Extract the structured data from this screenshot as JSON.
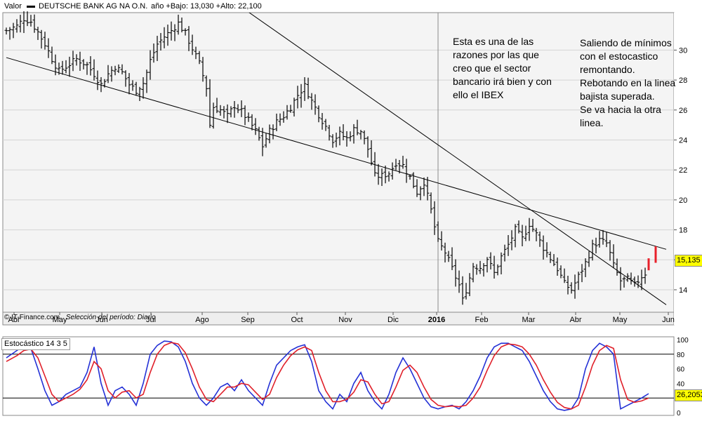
{
  "header": {
    "valor_label": "Valor",
    "instrument": "DEUTSCHE BANK AG NA O.N.",
    "range_text": "año +Bajo: 13,030 +Alto: 22,100"
  },
  "source": {
    "provider": "© IT-Finance.com",
    "period": "Selección del período: Diario"
  },
  "annotations": {
    "note1": "Esta es una de las\nrazones por las que\ncreo que el sector\nbancario irá bien y con\nello el IBEX",
    "note2": "Saliendo de mínimos\ncon el estocastico\nremontando.\nRebotando en la linea\nbajista superada.\nSe va hacia la otra\nlinea."
  },
  "colors": {
    "price_bar": "#000000",
    "recent_bar": "#e8202a",
    "stoch_k": "#2431d6",
    "stoch_d": "#e0202a",
    "badge": "#ffff00",
    "grid": "#d4d4d4"
  },
  "chart_data": [
    {
      "type": "ohlc",
      "chart": "price",
      "ylim": [
        12.5,
        32.5
      ],
      "y_ticks": [
        14,
        16,
        18,
        20,
        22,
        24,
        26,
        28,
        30
      ],
      "x_months": [
        "Abr",
        "May",
        "Jun",
        "Jul",
        "Ago",
        "Sep",
        "Oct",
        "Nov",
        "Dic",
        "2016",
        "Feb",
        "Mar",
        "Abr",
        "May",
        "Jun"
      ],
      "last_value": "15,135",
      "anchors": [
        [
          0,
          31.3
        ],
        [
          3,
          31.6
        ],
        [
          5,
          32.1
        ],
        [
          7,
          31.9
        ],
        [
          9,
          31.2
        ],
        [
          11,
          30.4
        ],
        [
          13,
          29.4
        ],
        [
          15,
          28.6
        ],
        [
          17,
          28.9
        ],
        [
          20,
          29.4
        ],
        [
          23,
          29.0
        ],
        [
          25,
          28.4
        ],
        [
          27,
          27.7
        ],
        [
          29,
          28.4
        ],
        [
          31,
          28.9
        ],
        [
          33,
          28.5
        ],
        [
          35,
          27.7
        ],
        [
          37,
          27.3
        ],
        [
          39,
          27.8
        ],
        [
          40,
          28.5
        ],
        [
          41,
          29.3
        ],
        [
          43,
          30.4
        ],
        [
          45,
          30.9
        ],
        [
          47,
          31.3
        ],
        [
          49,
          31.8
        ],
        [
          51,
          31.1
        ],
        [
          53,
          30.1
        ],
        [
          55,
          29.1
        ],
        [
          57,
          27.5
        ],
        [
          58,
          25.0
        ],
        [
          59,
          26.2
        ],
        [
          61,
          26.0
        ],
        [
          63,
          25.6
        ],
        [
          65,
          26.3
        ],
        [
          67,
          25.9
        ],
        [
          69,
          25.3
        ],
        [
          71,
          24.6
        ],
        [
          73,
          23.6
        ],
        [
          75,
          24.6
        ],
        [
          77,
          25.2
        ],
        [
          79,
          25.6
        ],
        [
          81,
          26.2
        ],
        [
          83,
          27.0
        ],
        [
          85,
          27.6
        ],
        [
          87,
          26.6
        ],
        [
          89,
          25.7
        ],
        [
          91,
          24.9
        ],
        [
          93,
          24.0
        ],
        [
          95,
          24.4
        ],
        [
          97,
          24.1
        ],
        [
          99,
          24.7
        ],
        [
          101,
          24.6
        ],
        [
          103,
          23.4
        ],
        [
          105,
          21.6
        ],
        [
          107,
          21.6
        ],
        [
          109,
          21.8
        ],
        [
          111,
          22.5
        ],
        [
          113,
          22.3
        ],
        [
          115,
          21.5
        ],
        [
          117,
          20.5
        ],
        [
          119,
          21.2
        ],
        [
          121,
          19.3
        ],
        [
          122,
          18.2
        ],
        [
          123,
          17.2
        ],
        [
          125,
          16.5
        ],
        [
          127,
          15.4
        ],
        [
          129,
          14.3
        ],
        [
          130,
          13.3
        ],
        [
          131,
          14.0
        ],
        [
          133,
          15.6
        ],
        [
          135,
          15.5
        ],
        [
          137,
          16.1
        ],
        [
          139,
          15.1
        ],
        [
          141,
          16.2
        ],
        [
          143,
          17.0
        ],
        [
          145,
          18.0
        ],
        [
          147,
          17.4
        ],
        [
          149,
          18.4
        ],
        [
          151,
          17.7
        ],
        [
          153,
          16.8
        ],
        [
          155,
          16.1
        ],
        [
          157,
          15.4
        ],
        [
          159,
          14.4
        ],
        [
          161,
          14.0
        ],
        [
          163,
          14.9
        ],
        [
          165,
          15.8
        ],
        [
          167,
          16.9
        ],
        [
          169,
          17.3
        ],
        [
          171,
          17.1
        ],
        [
          172,
          16.4
        ],
        [
          173,
          15.6
        ],
        [
          175,
          14.6
        ],
        [
          177,
          14.7
        ],
        [
          179,
          14.3
        ],
        [
          181,
          14.9
        ],
        [
          182,
          15.1
        ]
      ],
      "recent_bars": [
        [
          183,
          15.3,
          16.1
        ],
        [
          185,
          15.8,
          16.9
        ]
      ],
      "trendlines": [
        {
          "x1": 0,
          "y1": 29.5,
          "x2": 188,
          "y2": 16.7
        },
        {
          "x1": 54,
          "y1": 35.0,
          "x2": 188,
          "y2": 13.0
        }
      ]
    },
    {
      "type": "line",
      "chart": "stochastic",
      "title": "Estocástico 14 3 5",
      "ylim": [
        0,
        100
      ],
      "y_ticks": [
        0,
        20,
        40,
        60,
        80,
        100
      ],
      "ref_lines": [
        20,
        80
      ],
      "last_value": "26,2053",
      "series": [
        {
          "key": "k",
          "anchors": [
            [
              0,
              75
            ],
            [
              3,
              85
            ],
            [
              5,
              92
            ],
            [
              7,
              88
            ],
            [
              9,
              60
            ],
            [
              11,
              30
            ],
            [
              13,
              10
            ],
            [
              15,
              15
            ],
            [
              17,
              25
            ],
            [
              19,
              30
            ],
            [
              21,
              35
            ],
            [
              23,
              55
            ],
            [
              25,
              90
            ],
            [
              27,
              40
            ],
            [
              29,
              10
            ],
            [
              31,
              30
            ],
            [
              33,
              35
            ],
            [
              35,
              25
            ],
            [
              37,
              10
            ],
            [
              39,
              40
            ],
            [
              41,
              80
            ],
            [
              43,
              92
            ],
            [
              45,
              98
            ],
            [
              47,
              97
            ],
            [
              49,
              90
            ],
            [
              51,
              70
            ],
            [
              53,
              40
            ],
            [
              55,
              20
            ],
            [
              57,
              10
            ],
            [
              59,
              20
            ],
            [
              61,
              35
            ],
            [
              63,
              40
            ],
            [
              65,
              30
            ],
            [
              67,
              45
            ],
            [
              69,
              30
            ],
            [
              71,
              20
            ],
            [
              73,
              10
            ],
            [
              75,
              40
            ],
            [
              77,
              65
            ],
            [
              79,
              75
            ],
            [
              81,
              85
            ],
            [
              83,
              90
            ],
            [
              85,
              93
            ],
            [
              87,
              70
            ],
            [
              89,
              30
            ],
            [
              91,
              15
            ],
            [
              93,
              5
            ],
            [
              95,
              25
            ],
            [
              97,
              15
            ],
            [
              99,
              40
            ],
            [
              101,
              55
            ],
            [
              103,
              30
            ],
            [
              105,
              15
            ],
            [
              107,
              5
            ],
            [
              109,
              25
            ],
            [
              111,
              55
            ],
            [
              113,
              75
            ],
            [
              115,
              60
            ],
            [
              117,
              40
            ],
            [
              119,
              20
            ],
            [
              121,
              8
            ],
            [
              123,
              5
            ],
            [
              125,
              8
            ],
            [
              127,
              10
            ],
            [
              129,
              5
            ],
            [
              131,
              15
            ],
            [
              133,
              30
            ],
            [
              135,
              50
            ],
            [
              137,
              75
            ],
            [
              139,
              90
            ],
            [
              141,
              95
            ],
            [
              143,
              95
            ],
            [
              145,
              90
            ],
            [
              147,
              85
            ],
            [
              149,
              70
            ],
            [
              151,
              50
            ],
            [
              153,
              30
            ],
            [
              155,
              15
            ],
            [
              157,
              5
            ],
            [
              159,
              3
            ],
            [
              161,
              5
            ],
            [
              163,
              20
            ],
            [
              165,
              60
            ],
            [
              167,
              85
            ],
            [
              169,
              95
            ],
            [
              171,
              90
            ],
            [
              173,
              80
            ],
            [
              175,
              5
            ],
            [
              177,
              10
            ],
            [
              179,
              15
            ],
            [
              181,
              20
            ],
            [
              183,
              26
            ]
          ]
        },
        {
          "key": "d",
          "anchors": [
            [
              0,
              70
            ],
            [
              3,
              78
            ],
            [
              5,
              85
            ],
            [
              7,
              87
            ],
            [
              9,
              75
            ],
            [
              11,
              50
            ],
            [
              13,
              25
            ],
            [
              15,
              15
            ],
            [
              17,
              20
            ],
            [
              19,
              25
            ],
            [
              21,
              32
            ],
            [
              23,
              45
            ],
            [
              25,
              70
            ],
            [
              27,
              60
            ],
            [
              29,
              30
            ],
            [
              31,
              20
            ],
            [
              33,
              28
            ],
            [
              35,
              30
            ],
            [
              37,
              20
            ],
            [
              39,
              25
            ],
            [
              41,
              55
            ],
            [
              43,
              80
            ],
            [
              45,
              92
            ],
            [
              47,
              96
            ],
            [
              49,
              94
            ],
            [
              51,
              82
            ],
            [
              53,
              60
            ],
            [
              55,
              35
            ],
            [
              57,
              18
            ],
            [
              59,
              15
            ],
            [
              61,
              25
            ],
            [
              63,
              35
            ],
            [
              65,
              35
            ],
            [
              67,
              40
            ],
            [
              69,
              38
            ],
            [
              71,
              28
            ],
            [
              73,
              18
            ],
            [
              75,
              25
            ],
            [
              77,
              48
            ],
            [
              79,
              65
            ],
            [
              81,
              78
            ],
            [
              83,
              86
            ],
            [
              85,
              90
            ],
            [
              87,
              85
            ],
            [
              89,
              55
            ],
            [
              91,
              30
            ],
            [
              93,
              15
            ],
            [
              95,
              15
            ],
            [
              97,
              18
            ],
            [
              99,
              28
            ],
            [
              101,
              45
            ],
            [
              103,
              42
            ],
            [
              105,
              25
            ],
            [
              107,
              12
            ],
            [
              109,
              15
            ],
            [
              111,
              35
            ],
            [
              113,
              58
            ],
            [
              115,
              65
            ],
            [
              117,
              55
            ],
            [
              119,
              35
            ],
            [
              121,
              18
            ],
            [
              123,
              10
            ],
            [
              125,
              8
            ],
            [
              127,
              9
            ],
            [
              129,
              8
            ],
            [
              131,
              10
            ],
            [
              133,
              20
            ],
            [
              135,
              35
            ],
            [
              137,
              58
            ],
            [
              139,
              78
            ],
            [
              141,
              90
            ],
            [
              143,
              94
            ],
            [
              145,
              93
            ],
            [
              147,
              90
            ],
            [
              149,
              80
            ],
            [
              151,
              65
            ],
            [
              153,
              45
            ],
            [
              155,
              28
            ],
            [
              157,
              14
            ],
            [
              159,
              7
            ],
            [
              161,
              5
            ],
            [
              163,
              10
            ],
            [
              165,
              35
            ],
            [
              167,
              65
            ],
            [
              169,
              85
            ],
            [
              171,
              92
            ],
            [
              173,
              88
            ],
            [
              175,
              45
            ],
            [
              177,
              18
            ],
            [
              179,
              14
            ],
            [
              181,
              16
            ],
            [
              183,
              20
            ]
          ]
        }
      ]
    }
  ]
}
